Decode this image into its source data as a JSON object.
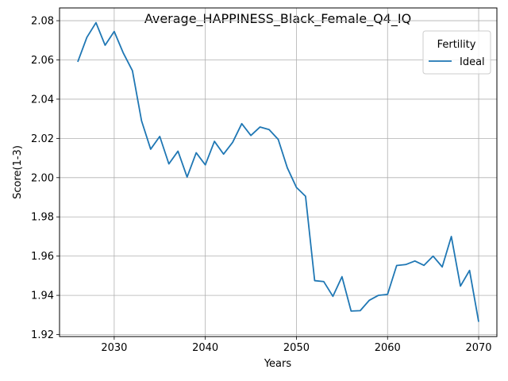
{
  "chart_data": {
    "type": "line",
    "title": "Average_HAPPINESS_Black_Female_Q4_IQ",
    "xlabel": "Years",
    "ylabel": "Score(1-3)",
    "xlim": [
      2024,
      2072
    ],
    "ylim": [
      1.919,
      2.0865
    ],
    "xticks": [
      2030,
      2040,
      2050,
      2060,
      2070
    ],
    "yticks": [
      1.92,
      1.94,
      1.96,
      1.98,
      2.0,
      2.02,
      2.04,
      2.06,
      2.08
    ],
    "ytick_labels": [
      "1.92",
      "1.94",
      "1.96",
      "1.98",
      "2.00",
      "2.02",
      "2.04",
      "2.06",
      "2.08"
    ],
    "grid": true,
    "legend": {
      "title": "Fertility",
      "position": "top-right"
    },
    "series": [
      {
        "name": "Ideal",
        "color": "#1f77b4",
        "x": [
          2026,
          2027,
          2028,
          2029,
          2030,
          2031,
          2032,
          2033,
          2034,
          2035,
          2036,
          2037,
          2038,
          2039,
          2040,
          2041,
          2042,
          2043,
          2044,
          2045,
          2046,
          2047,
          2048,
          2049,
          2050,
          2051,
          2052,
          2053,
          2054,
          2055,
          2056,
          2057,
          2058,
          2059,
          2060,
          2061,
          2062,
          2063,
          2064,
          2065,
          2066,
          2067,
          2068,
          2069,
          2070
        ],
        "y": [
          2.059,
          2.0715,
          2.079,
          2.0675,
          2.0745,
          2.0635,
          2.0545,
          2.029,
          2.0145,
          2.021,
          2.007,
          2.0135,
          2.0003,
          2.0127,
          2.0065,
          2.0185,
          2.012,
          2.018,
          2.0275,
          2.0215,
          2.0258,
          2.0245,
          2.0195,
          2.005,
          1.995,
          1.9905,
          1.9475,
          1.947,
          1.9395,
          1.9495,
          1.932,
          1.9322,
          1.9375,
          1.94,
          1.9405,
          1.9552,
          1.9557,
          1.9575,
          1.9553,
          1.96,
          1.9545,
          1.97,
          1.9447,
          1.9527,
          1.9265
        ]
      }
    ]
  }
}
